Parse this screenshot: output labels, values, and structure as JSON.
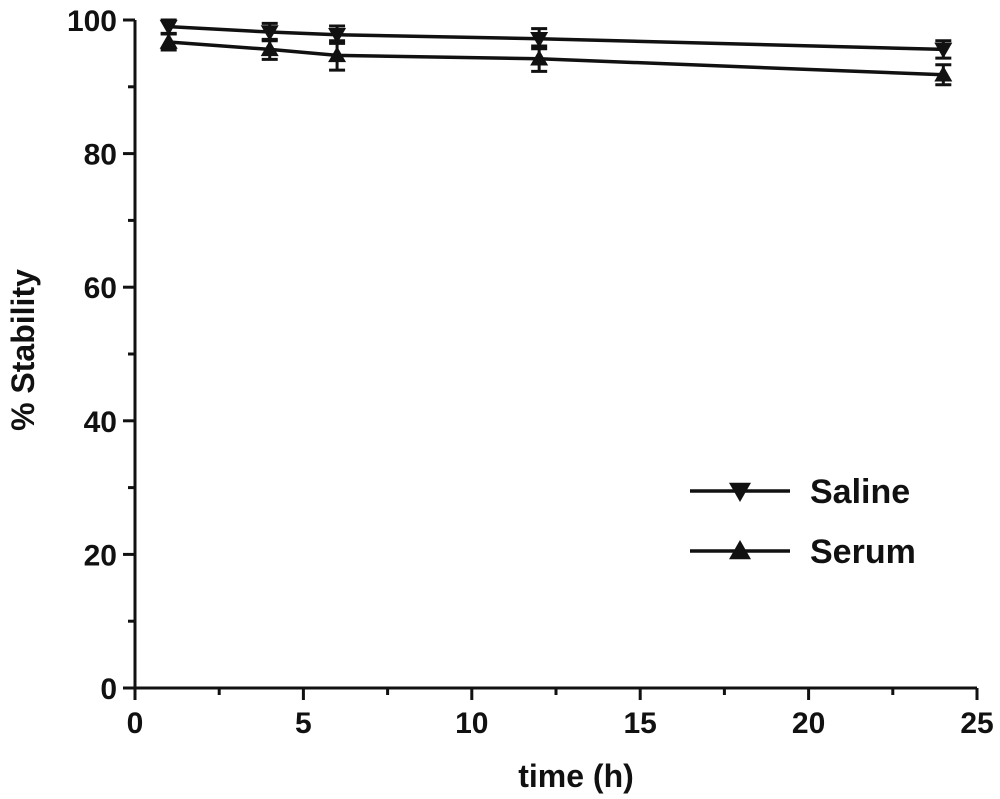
{
  "chart_data": {
    "type": "line",
    "title": "",
    "xlabel": "time (h)",
    "ylabel": "% Stability",
    "xlim": [
      0,
      25
    ],
    "ylim": [
      0,
      100
    ],
    "x_ticks": [
      0,
      5,
      10,
      15,
      20,
      25
    ],
    "y_ticks": [
      0,
      20,
      40,
      60,
      80,
      100
    ],
    "grid": false,
    "legend": "bottom-right",
    "x": [
      1,
      4,
      6,
      12,
      24
    ],
    "series": [
      {
        "name": "Saline",
        "marker": "triangle-down",
        "values": [
          99,
          98.2,
          97.8,
          97.2,
          95.6
        ],
        "errors": [
          1.0,
          1.3,
          1.3,
          1.5,
          1.3
        ]
      },
      {
        "name": "Serum",
        "marker": "triangle-up",
        "values": [
          96.7,
          95.6,
          94.7,
          94.2,
          91.8
        ],
        "errors": [
          1.2,
          1.5,
          2.2,
          1.9,
          1.5
        ]
      }
    ]
  }
}
